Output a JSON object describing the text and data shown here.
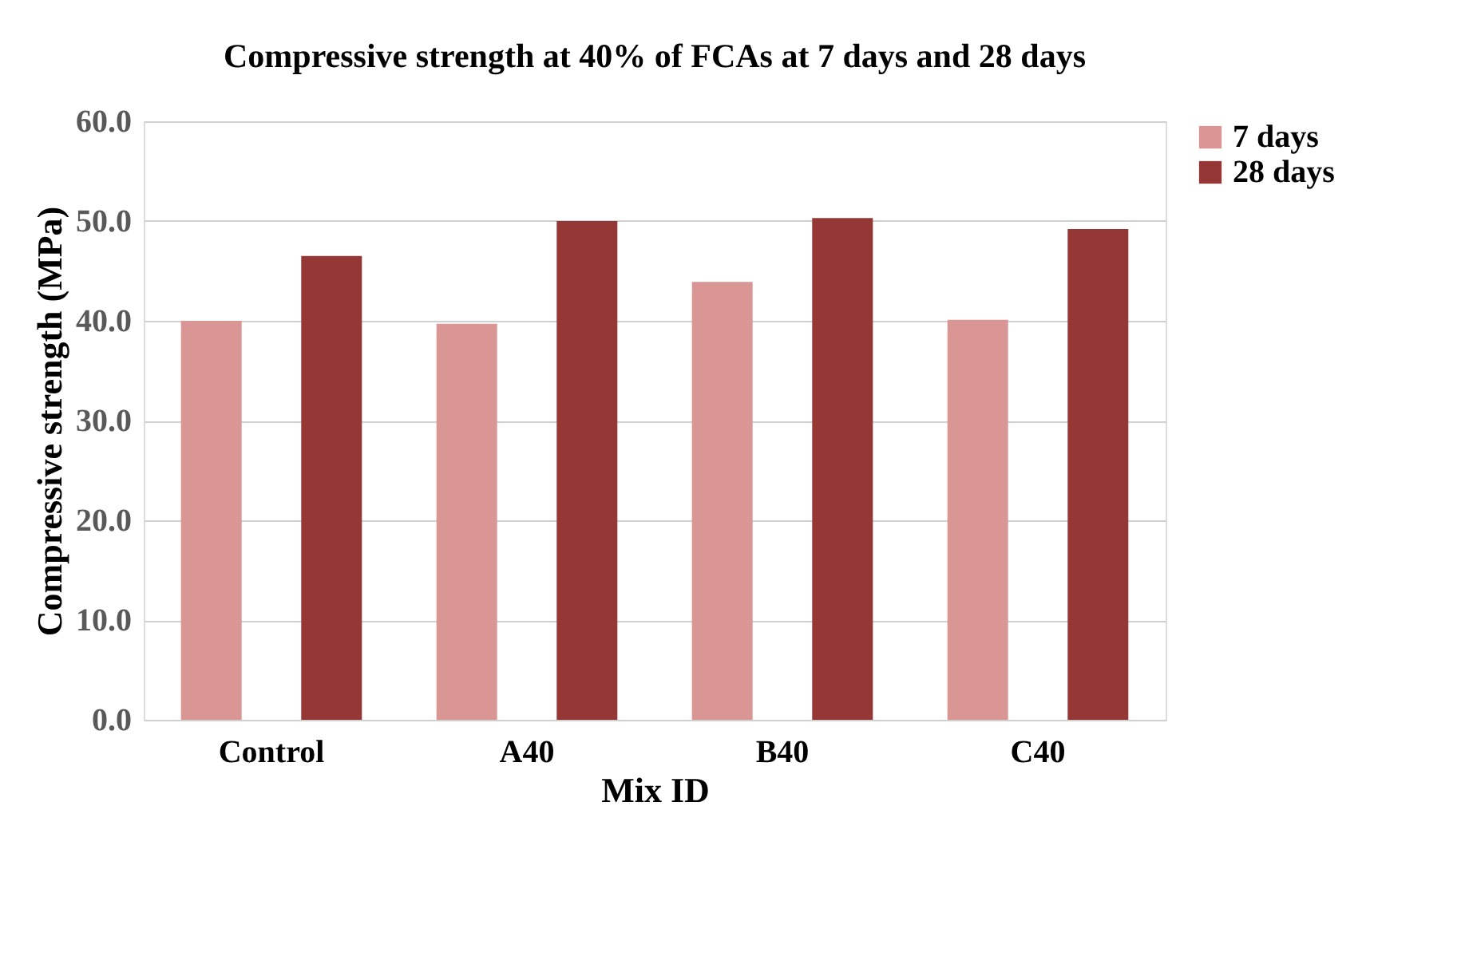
{
  "chart_data": {
    "type": "bar",
    "title": "Compressive strength at 40% of FCAs at 7 days and 28 days",
    "xlabel": "Mix ID",
    "ylabel": "Compressive strength (MPa)",
    "categories": [
      "Control",
      "A40",
      "B40",
      "C40"
    ],
    "series": [
      {
        "name": "7 days",
        "color": "#d99694",
        "values": [
          40.0,
          39.7,
          43.9,
          40.1
        ]
      },
      {
        "name": "28 days",
        "color": "#953735",
        "values": [
          46.5,
          50.0,
          50.3,
          49.2
        ]
      }
    ],
    "ylim": [
      0,
      60
    ],
    "yticks": [
      {
        "value": 0,
        "label": "0.0"
      },
      {
        "value": 10,
        "label": "10.0"
      },
      {
        "value": 20,
        "label": "20.0"
      },
      {
        "value": 30,
        "label": "30.0"
      },
      {
        "value": 40,
        "label": "40.0"
      },
      {
        "value": 50,
        "label": "50.0"
      },
      {
        "value": 60,
        "label": "60.0"
      }
    ],
    "grid": "y",
    "legend": "right"
  }
}
